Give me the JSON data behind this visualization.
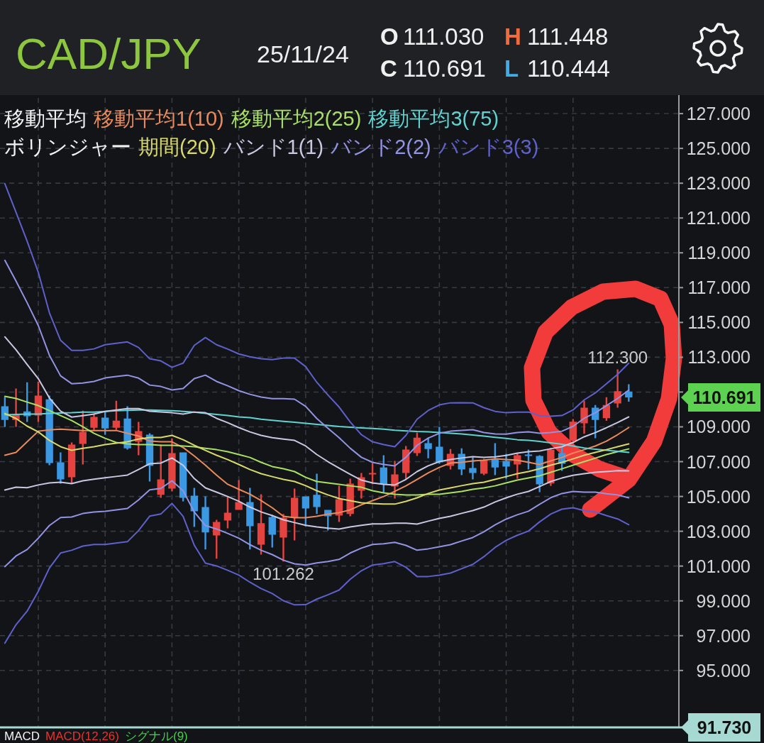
{
  "chart_data": {
    "type": "candlestick",
    "title": "CAD/JPY",
    "subtitle": "25/11/24",
    "categories": [
      null,
      null,
      null,
      null,
      null,
      null,
      null,
      null,
      null,
      null,
      null,
      null,
      null,
      null,
      null,
      null,
      null,
      null,
      null,
      null,
      null,
      null,
      null,
      null,
      null,
      null,
      null,
      null,
      null,
      null,
      null,
      null,
      null,
      null,
      null,
      null,
      null,
      null,
      null,
      null,
      null,
      null,
      null,
      null,
      null,
      null,
      null,
      null,
      null,
      null,
      null,
      null,
      null,
      null,
      null,
      null,
      null
    ],
    "ohlc": [
      [
        110.18,
        110.71,
        109.0,
        109.4
      ],
      [
        109.4,
        111.2,
        109.0,
        109.69
      ],
      [
        109.89,
        111.56,
        109.28,
        109.61
      ],
      [
        109.65,
        111.6,
        109.28,
        110.79
      ],
      [
        110.58,
        110.79,
        106.8,
        106.92
      ],
      [
        106.96,
        107.53,
        105.74,
        105.98
      ],
      [
        106.1,
        108.1,
        105.74,
        107.98
      ],
      [
        108.02,
        109.93,
        106.84,
        108.71
      ],
      [
        108.95,
        109.77,
        108.83,
        109.57
      ],
      [
        109.53,
        109.89,
        108.55,
        108.91
      ],
      [
        108.95,
        110.5,
        108.83,
        109.36
      ],
      [
        109.48,
        110.18,
        107.69,
        107.77
      ],
      [
        108.14,
        109.28,
        107.37,
        108.75
      ],
      [
        108.55,
        108.63,
        105.86,
        106.76
      ],
      [
        105.09,
        107.98,
        104.92,
        105.98
      ],
      [
        105.45,
        108.34,
        105.29,
        107.49
      ],
      [
        107.53,
        107.53,
        104.72,
        104.92
      ],
      [
        105.04,
        105.49,
        103.25,
        104.15
      ],
      [
        104.39,
        105.0,
        101.95,
        102.93
      ],
      [
        102.76,
        103.66,
        101.42,
        103.54
      ],
      [
        103.62,
        105.0,
        103.17,
        104.07
      ],
      [
        104.23,
        105.94,
        104.23,
        104.68
      ],
      [
        104.68,
        105.49,
        101.95,
        103.29
      ],
      [
        102.23,
        105.13,
        101.66,
        103.46
      ],
      [
        103.82,
        103.94,
        102.07,
        102.8
      ],
      [
        102.64,
        103.99,
        101.262,
        103.78
      ],
      [
        103.78,
        105.45,
        102.48,
        104.92
      ],
      [
        105.0,
        105.0,
        103.29,
        104.31
      ],
      [
        105.09,
        106.31,
        103.99,
        104.39
      ],
      [
        104.23,
        104.23,
        103.05,
        103.86
      ],
      [
        103.9,
        105.61,
        103.54,
        104.84
      ],
      [
        103.99,
        106.02,
        103.86,
        105.74
      ],
      [
        105.33,
        106.35,
        104.88,
        106.1
      ],
      [
        106.27,
        106.92,
        105.7,
        106.35
      ],
      [
        106.67,
        107.37,
        105.21,
        105.7
      ],
      [
        105.57,
        107.04,
        104.88,
        106.27
      ],
      [
        106.35,
        107.9,
        105.98,
        107.69
      ],
      [
        107.49,
        108.67,
        107.33,
        108.38
      ],
      [
        108.06,
        108.38,
        107.2,
        107.73
      ],
      [
        107.86,
        109.0,
        106.88,
        106.96
      ],
      [
        106.76,
        107.73,
        106.55,
        107.45
      ],
      [
        107.45,
        107.77,
        106.23,
        106.55
      ],
      [
        106.63,
        107.24,
        105.98,
        106.35
      ],
      [
        106.31,
        107.16,
        106.23,
        107.08
      ],
      [
        107.12,
        108.06,
        106.23,
        106.67
      ],
      [
        107.04,
        107.45,
        106.02,
        106.72
      ],
      [
        106.84,
        107.49,
        106.02,
        107.37
      ],
      [
        107.41,
        107.69,
        106.55,
        107.33
      ],
      [
        107.33,
        107.37,
        105.25,
        105.7
      ],
      [
        105.75,
        107.8,
        105.6,
        107.68
      ],
      [
        107.49,
        107.86,
        106.47,
        106.88
      ],
      [
        108.2,
        109.45,
        108.06,
        109.3
      ],
      [
        109.2,
        110.5,
        108.6,
        110.1
      ],
      [
        110.1,
        110.25,
        108.35,
        109.4
      ],
      [
        109.5,
        110.7,
        109.35,
        110.25
      ],
      [
        110.35,
        112.3,
        110.1,
        111.05
      ],
      [
        111.03,
        111.448,
        110.444,
        110.691
      ]
    ],
    "colors": [
      "#3b98e3",
      "#e5433f",
      "#3b98e3",
      "#e5433f",
      "#3b98e3",
      "#3b98e3",
      "#e5433f",
      "#e5433f",
      "#e5433f",
      "#3b98e3",
      "#e5433f",
      "#3b98e3",
      "#e5433f",
      "#3b98e3",
      "#e5433f",
      "#e5433f",
      "#3b98e3",
      "#3b98e3",
      "#3b98e3",
      "#e5433f",
      "#e5433f",
      "#e5433f",
      "#3b98e3",
      "#e5433f",
      "#3b98e3",
      "#e5433f",
      "#e5433f",
      "#3b98e3",
      "#3b98e3",
      "#3b98e3",
      "#e5433f",
      "#e5433f",
      "#e5433f",
      "#e5433f",
      "#3b98e3",
      "#e5433f",
      "#e5433f",
      "#e5433f",
      "#3b98e3",
      "#3b98e3",
      "#e5433f",
      "#3b98e3",
      "#3b98e3",
      "#e5433f",
      "#3b98e3",
      "#3b98e3",
      "#e5433f",
      "#3b98e3",
      "#3b98e3",
      "#e5433f",
      "#3b98e3",
      "#e5433f",
      "#e5433f",
      "#3b98e3",
      "#e5433f",
      "#e5433f",
      "#3b98e3"
    ],
    "series": [
      {
        "name": "移動平均1(10)",
        "type": "line",
        "color": "#e98a5b",
        "values": [
          107.37,
          107.53,
          108.14,
          108.75,
          108.83,
          108.87,
          108.83,
          108.79,
          108.79,
          108.79,
          108.79,
          108.63,
          108.47,
          108.18,
          108.14,
          108.14,
          107.81,
          107.33,
          106.8,
          106.23,
          105.7,
          105.41,
          105.13,
          104.76,
          104.35,
          103.86,
          103.78,
          103.78,
          103.86,
          103.98,
          104.07,
          104.23,
          104.52,
          104.76,
          105.0,
          105.29,
          105.61,
          105.98,
          106.35,
          106.67,
          106.92,
          106.96,
          107.04,
          107.08,
          107.16,
          107.12,
          107.08,
          106.96,
          106.84,
          107.04,
          107.24,
          107.49,
          107.69,
          107.9,
          108.18,
          108.55,
          108.96
        ]
      },
      {
        "name": "移動平均2(25)",
        "type": "line",
        "color": "#a8e063",
        "values": [
          110.75,
          110.63,
          110.42,
          110.22,
          109.93,
          109.65,
          109.36,
          109.0,
          108.63,
          108.34,
          108.1,
          108.02,
          107.98,
          107.98,
          107.94,
          107.94,
          107.9,
          107.86,
          107.77,
          107.69,
          107.57,
          107.41,
          107.24,
          106.96,
          106.72,
          106.59,
          106.43,
          106.1,
          105.86,
          105.78,
          105.7,
          105.61,
          105.53,
          105.33,
          105.21,
          105.13,
          105.08,
          105.08,
          105.13,
          105.13,
          105.21,
          105.29,
          105.41,
          105.49,
          105.61,
          105.78,
          105.94,
          106.06,
          106.19,
          106.39,
          106.59,
          106.8,
          107.0,
          107.2,
          107.41,
          107.57,
          107.73
        ]
      },
      {
        "name": "移動平均3(75)",
        "type": "line",
        "color": "#5fd3d0",
        "values": [
          109.69,
          109.71,
          109.73,
          109.73,
          109.77,
          109.79,
          109.81,
          109.85,
          109.85,
          109.89,
          109.93,
          109.95,
          109.97,
          109.97,
          109.95,
          109.93,
          109.89,
          109.85,
          109.77,
          109.71,
          109.65,
          109.57,
          109.53,
          109.44,
          109.38,
          109.32,
          109.26,
          109.2,
          109.14,
          109.08,
          109.02,
          108.98,
          108.94,
          108.91,
          108.87,
          108.81,
          108.77,
          108.73,
          108.71,
          108.67,
          108.63,
          108.59,
          108.53,
          108.47,
          108.4,
          108.34,
          108.26,
          108.22,
          108.16,
          108.08,
          108.0,
          107.9,
          107.79,
          107.71,
          107.65,
          107.59,
          107.53
        ]
      },
      {
        "name": "期間(20)",
        "type": "line",
        "color": "#d9d86a",
        "values": [
          109.77,
          109.48,
          109.04,
          108.71,
          108.22,
          107.86,
          107.65,
          107.77,
          107.86,
          107.98,
          108.06,
          108.14,
          108.3,
          108.39,
          108.39,
          108.51,
          108.26,
          107.94,
          107.65,
          107.37,
          107.12,
          106.84,
          106.55,
          106.31,
          106.14,
          105.98,
          105.86,
          105.62,
          105.33,
          105.09,
          104.88,
          104.76,
          104.64,
          104.6,
          104.56,
          104.56,
          104.72,
          104.92,
          105.17,
          105.37,
          105.49,
          105.62,
          105.74,
          105.82,
          105.98,
          106.14,
          106.31,
          106.43,
          106.59,
          106.8,
          106.96,
          107.16,
          107.37,
          107.53,
          107.69,
          107.86,
          108.02
        ]
      },
      {
        "name": "バンド1(1)",
        "type": "line",
        "color": "#c8c8e2",
        "values": [
          114.17,
          113.43,
          112.58,
          111.77,
          110.66,
          109.9,
          109.56,
          109.64,
          109.73,
          109.89,
          109.97,
          110.05,
          110.05,
          109.9,
          109.86,
          109.81,
          109.73,
          109.85,
          109.81,
          109.49,
          109.24,
          108.96,
          108.71,
          108.51,
          108.38,
          108.3,
          108.22,
          107.9,
          107.41,
          107.0,
          106.63,
          106.27,
          105.94,
          105.78,
          105.7,
          105.66,
          105.98,
          106.43,
          106.76,
          107.0,
          107.12,
          107.21,
          107.29,
          107.25,
          107.28,
          107.36,
          107.49,
          107.57,
          107.61,
          107.74,
          107.86,
          108.1,
          108.43,
          108.67,
          108.95,
          109.25,
          109.57
        ]
      },
      {
        "type": "line",
        "color": "#c8c8e2",
        "values": [
          105.37,
          105.53,
          105.5,
          105.66,
          105.78,
          105.82,
          105.74,
          105.9,
          105.99,
          106.07,
          106.15,
          106.23,
          106.55,
          106.88,
          106.92,
          107.21,
          106.79,
          106.03,
          105.49,
          105.25,
          105.0,
          104.72,
          104.39,
          104.11,
          103.9,
          103.66,
          103.5,
          103.34,
          103.25,
          103.18,
          103.13,
          103.25,
          103.34,
          103.42,
          103.42,
          103.46,
          103.46,
          103.41,
          103.58,
          103.74,
          103.86,
          104.03,
          104.19,
          104.39,
          104.68,
          104.92,
          105.13,
          105.29,
          105.57,
          105.86,
          106.06,
          106.22,
          106.31,
          106.39,
          106.43,
          106.48,
          106.47
        ]
      },
      {
        "name": "バンド2(2)",
        "type": "line",
        "color": "#9393e3",
        "values": [
          118.57,
          117.38,
          116.13,
          114.82,
          113.11,
          111.93,
          111.48,
          111.52,
          111.61,
          111.81,
          111.89,
          111.97,
          111.8,
          111.4,
          111.32,
          111.12,
          111.2,
          111.77,
          111.97,
          111.61,
          111.36,
          111.08,
          110.87,
          110.71,
          110.62,
          110.62,
          110.59,
          110.18,
          109.48,
          108.92,
          108.38,
          107.77,
          107.25,
          106.96,
          106.84,
          106.76,
          107.25,
          107.94,
          108.35,
          108.63,
          108.75,
          108.8,
          108.84,
          108.67,
          108.59,
          108.58,
          108.67,
          108.71,
          108.63,
          108.67,
          108.75,
          109.03,
          109.49,
          109.81,
          110.22,
          110.63,
          111.11
        ]
      },
      {
        "type": "line",
        "color": "#9393e3",
        "values": [
          100.97,
          101.58,
          101.95,
          102.6,
          103.33,
          103.79,
          103.82,
          104.02,
          104.11,
          104.15,
          104.23,
          104.31,
          104.8,
          105.38,
          105.46,
          105.9,
          105.33,
          104.11,
          103.33,
          103.13,
          102.88,
          102.6,
          102.23,
          101.91,
          101.66,
          101.34,
          101.13,
          101.06,
          101.18,
          101.26,
          101.38,
          101.75,
          102.03,
          102.24,
          102.28,
          102.36,
          102.19,
          101.91,
          101.99,
          102.11,
          102.23,
          102.44,
          102.64,
          102.97,
          103.37,
          103.7,
          103.95,
          104.15,
          104.55,
          104.93,
          105.17,
          105.29,
          105.25,
          105.25,
          105.16,
          105.09,
          104.92
        ]
      },
      {
        "name": "バンド3(3)",
        "type": "line",
        "color": "#6060cc",
        "values": [
          122.97,
          121.33,
          119.67,
          117.88,
          115.55,
          113.97,
          113.39,
          113.39,
          113.48,
          113.72,
          113.8,
          113.88,
          113.56,
          112.91,
          112.79,
          112.42,
          112.66,
          113.68,
          114.13,
          113.72,
          113.47,
          113.19,
          113.03,
          112.91,
          112.86,
          112.95,
          112.95,
          112.46,
          111.56,
          110.83,
          110.14,
          109.28,
          108.55,
          108.14,
          107.98,
          107.86,
          108.51,
          109.44,
          109.94,
          110.26,
          110.38,
          110.39,
          110.38,
          110.1,
          109.89,
          109.81,
          109.85,
          109.85,
          109.64,
          109.61,
          109.65,
          109.97,
          110.55,
          110.95,
          111.48,
          112.02,
          112.66
        ]
      },
      {
        "type": "line",
        "color": "#6060cc",
        "values": [
          96.57,
          97.63,
          98.41,
          99.55,
          100.89,
          101.75,
          101.91,
          102.15,
          102.24,
          102.24,
          102.32,
          102.4,
          103.04,
          103.87,
          103.99,
          104.6,
          103.86,
          102.2,
          101.17,
          101.01,
          100.76,
          100.48,
          100.07,
          99.71,
          99.42,
          99.01,
          98.77,
          98.78,
          99.1,
          99.35,
          99.62,
          100.24,
          100.73,
          101.06,
          101.14,
          101.26,
          100.93,
          100.4,
          100.4,
          100.48,
          100.6,
          100.85,
          101.1,
          101.54,
          102.07,
          102.48,
          102.77,
          103.01,
          103.54,
          103.99,
          104.27,
          104.35,
          104.19,
          104.11,
          103.9,
          103.71,
          103.38
        ]
      }
    ],
    "ylim": [
      91.73,
      127.9
    ],
    "yticks": [
      {
        "value": 127,
        "label": "127.000"
      },
      {
        "value": 125,
        "label": "125.000"
      },
      {
        "value": 123,
        "label": "123.000"
      },
      {
        "value": 121,
        "label": "121.000"
      },
      {
        "value": 119,
        "label": "119.000"
      },
      {
        "value": 117,
        "label": "117.000"
      },
      {
        "value": 115,
        "label": "115.000"
      },
      {
        "value": 113,
        "label": "113.000"
      },
      {
        "value": 111,
        "label": null
      },
      {
        "value": 109,
        "label": "109.000"
      },
      {
        "value": 107,
        "label": "107.000"
      },
      {
        "value": 105,
        "label": "105.000"
      },
      {
        "value": 103,
        "label": "103.000"
      },
      {
        "value": 101,
        "label": "101.000"
      },
      {
        "value": 99,
        "label": "99.000"
      },
      {
        "value": 97,
        "label": "97.000"
      },
      {
        "value": 95,
        "label": "95.000"
      }
    ],
    "grid": true,
    "legend": "top left",
    "annotations": [
      "O",
      "111.030",
      "H",
      "111.448",
      "C",
      "110.691",
      "L",
      "110.444",
      "移動平均",
      "ボリンジャー",
      "MACD",
      "MACD(12,26)",
      "シグナル(9)",
      "110.691",
      "91.730",
      {
        "text": "112.300",
        "y": 112.3
      },
      {
        "text": "101.262",
        "y": 101.262
      }
    ]
  }
}
